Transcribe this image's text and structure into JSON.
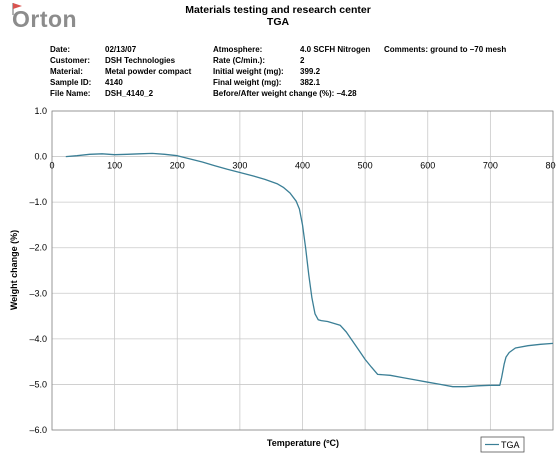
{
  "header": {
    "logo_text": "Orton",
    "title": "Materials testing and research center",
    "subtitle": "TGA"
  },
  "info": {
    "date_label": "Date:",
    "date_value": "02/13/07",
    "customer_label": "Customer:",
    "customer_value": "DSH Technologies",
    "material_label": "Material:",
    "material_value": "Metal powder compact",
    "sample_label": "Sample ID:",
    "sample_value": "4140",
    "file_label": "File Name:",
    "file_value": "DSH_4140_2",
    "atmosphere_label": "Atmosphere:",
    "atmosphere_value": "4.0 SCFH Nitrogen",
    "comments_label": "Comments:",
    "comments_value": "ground to –70 mesh",
    "rate_label": "Rate (C/min.):",
    "rate_value": "2",
    "initial_label": "Initial weight (mg):",
    "initial_value": "399.2",
    "final_label": "Final weight (mg):",
    "final_value": "382.1",
    "change_label": "Before/After weight change (%):",
    "change_value": "–4.28"
  },
  "chart_data": {
    "type": "line",
    "xlabel": "Temperature (ºC)",
    "ylabel": "Weight change (%)",
    "xlim": [
      0,
      800
    ],
    "ylim": [
      -6.0,
      1.0
    ],
    "xticks": [
      0,
      100,
      200,
      300,
      400,
      500,
      600,
      700,
      800
    ],
    "yticks": [
      1.0,
      0.0,
      -1.0,
      -2.0,
      -3.0,
      -4.0,
      -5.0,
      -6.0
    ],
    "ytick_labels": [
      "1.0",
      "0.0",
      "–1.0",
      "–2.0",
      "–3.0",
      "–4.0",
      "–5.0",
      "–6.0"
    ],
    "grid": true,
    "legend_position": "bottom-right",
    "series": [
      {
        "name": "TGA",
        "color": "#3b7f96",
        "x": [
          22,
          40,
          60,
          80,
          100,
          120,
          140,
          160,
          180,
          200,
          220,
          240,
          260,
          280,
          300,
          320,
          340,
          360,
          370,
          380,
          390,
          395,
          400,
          405,
          410,
          415,
          420,
          425,
          430,
          440,
          460,
          470,
          480,
          490,
          500,
          510,
          520,
          540,
          560,
          580,
          600,
          620,
          640,
          660,
          680,
          700,
          715,
          718,
          722,
          725,
          730,
          740,
          760,
          780,
          800
        ],
        "y": [
          0.0,
          0.02,
          0.05,
          0.06,
          0.04,
          0.05,
          0.06,
          0.07,
          0.05,
          0.02,
          -0.05,
          -0.12,
          -0.2,
          -0.28,
          -0.35,
          -0.42,
          -0.5,
          -0.6,
          -0.68,
          -0.8,
          -0.98,
          -1.15,
          -1.5,
          -2.0,
          -2.6,
          -3.1,
          -3.45,
          -3.58,
          -3.6,
          -3.62,
          -3.7,
          -3.85,
          -4.05,
          -4.25,
          -4.45,
          -4.62,
          -4.78,
          -4.8,
          -4.85,
          -4.9,
          -4.95,
          -5.0,
          -5.05,
          -5.05,
          -5.03,
          -5.02,
          -5.02,
          -4.85,
          -4.55,
          -4.4,
          -4.3,
          -4.2,
          -4.15,
          -4.12,
          -4.1
        ]
      }
    ]
  }
}
